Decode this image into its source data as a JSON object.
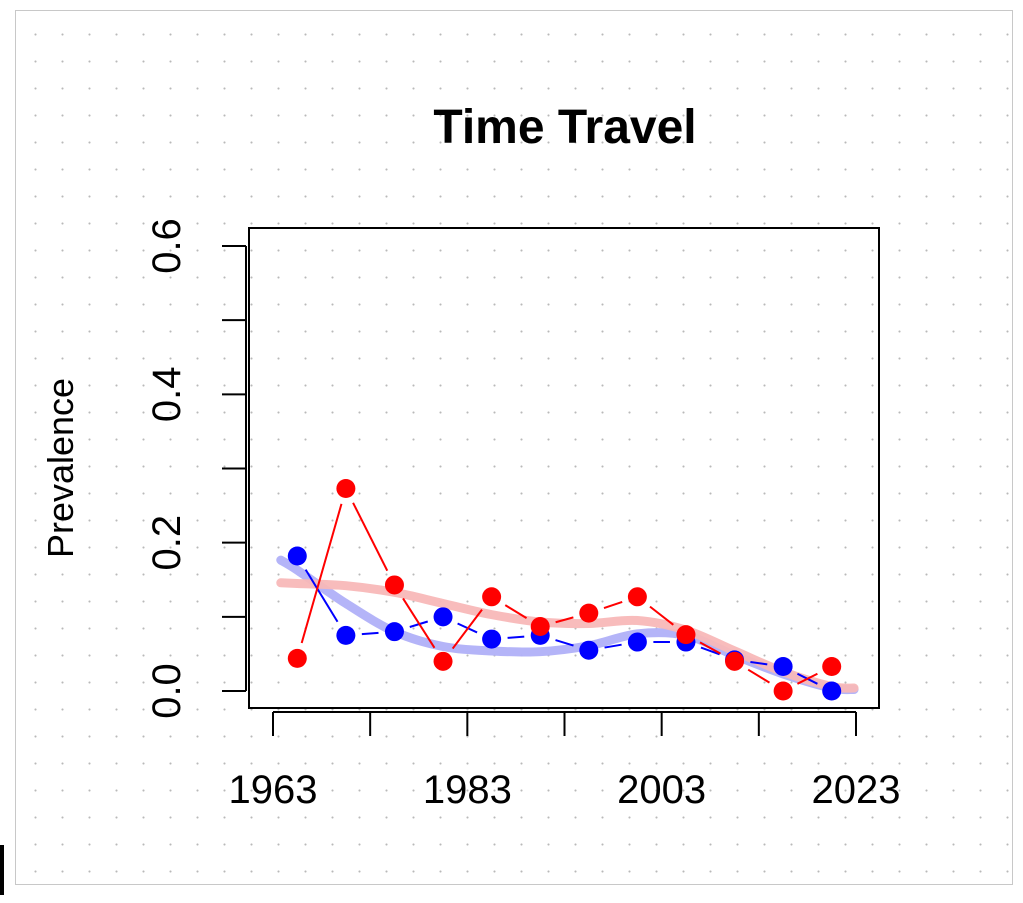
{
  "chart_data": {
    "type": "scatter",
    "title": "Time Travel",
    "xlabel": "",
    "ylabel": "Prevalence",
    "xlim": [
      1963,
      2023
    ],
    "ylim": [
      0,
      0.6
    ],
    "x_ticks": [
      1963,
      1973,
      1983,
      1993,
      2003,
      2013,
      2023
    ],
    "x_tick_labels": [
      "1963",
      "1983",
      "2003",
      "2023"
    ],
    "y_ticks": [
      0,
      0.1,
      0.2,
      0.3,
      0.4,
      0.5,
      0.6
    ],
    "y_tick_labels": [
      "0.0",
      "0.2",
      "0.4",
      "0.6"
    ],
    "grid": false,
    "series": [
      {
        "color": "#0000ff",
        "smooth_color": "#b0b0f8",
        "x": [
          1965.5,
          1970.5,
          1975.5,
          1980.5,
          1985.5,
          1990.5,
          1995.5,
          2000.5,
          2005.5,
          2010.5,
          2015.5,
          2020.5
        ],
        "values": [
          0.182,
          0.075,
          0.08,
          0.1,
          0.07,
          0.075,
          0.055,
          0.066,
          0.066,
          0.042,
          0.033,
          0.0
        ],
        "trend": [
          0.163,
          0.118,
          0.08,
          0.06,
          0.054,
          0.053,
          0.061,
          0.077,
          0.075,
          0.048,
          0.023,
          0.004
        ]
      },
      {
        "color": "#ff0000",
        "smooth_color": "#f8b8b8",
        "x": [
          1965.5,
          1970.5,
          1975.5,
          1980.5,
          1985.5,
          1990.5,
          1995.5,
          2000.5,
          2005.5,
          2010.5,
          2015.5,
          2020.5
        ],
        "values": [
          0.044,
          0.273,
          0.143,
          0.04,
          0.127,
          0.087,
          0.105,
          0.127,
          0.076,
          0.04,
          0.0,
          0.033
        ],
        "trend": [
          0.145,
          0.142,
          0.133,
          0.118,
          0.103,
          0.093,
          0.091,
          0.095,
          0.082,
          0.054,
          0.026,
          0.006
        ]
      }
    ]
  }
}
